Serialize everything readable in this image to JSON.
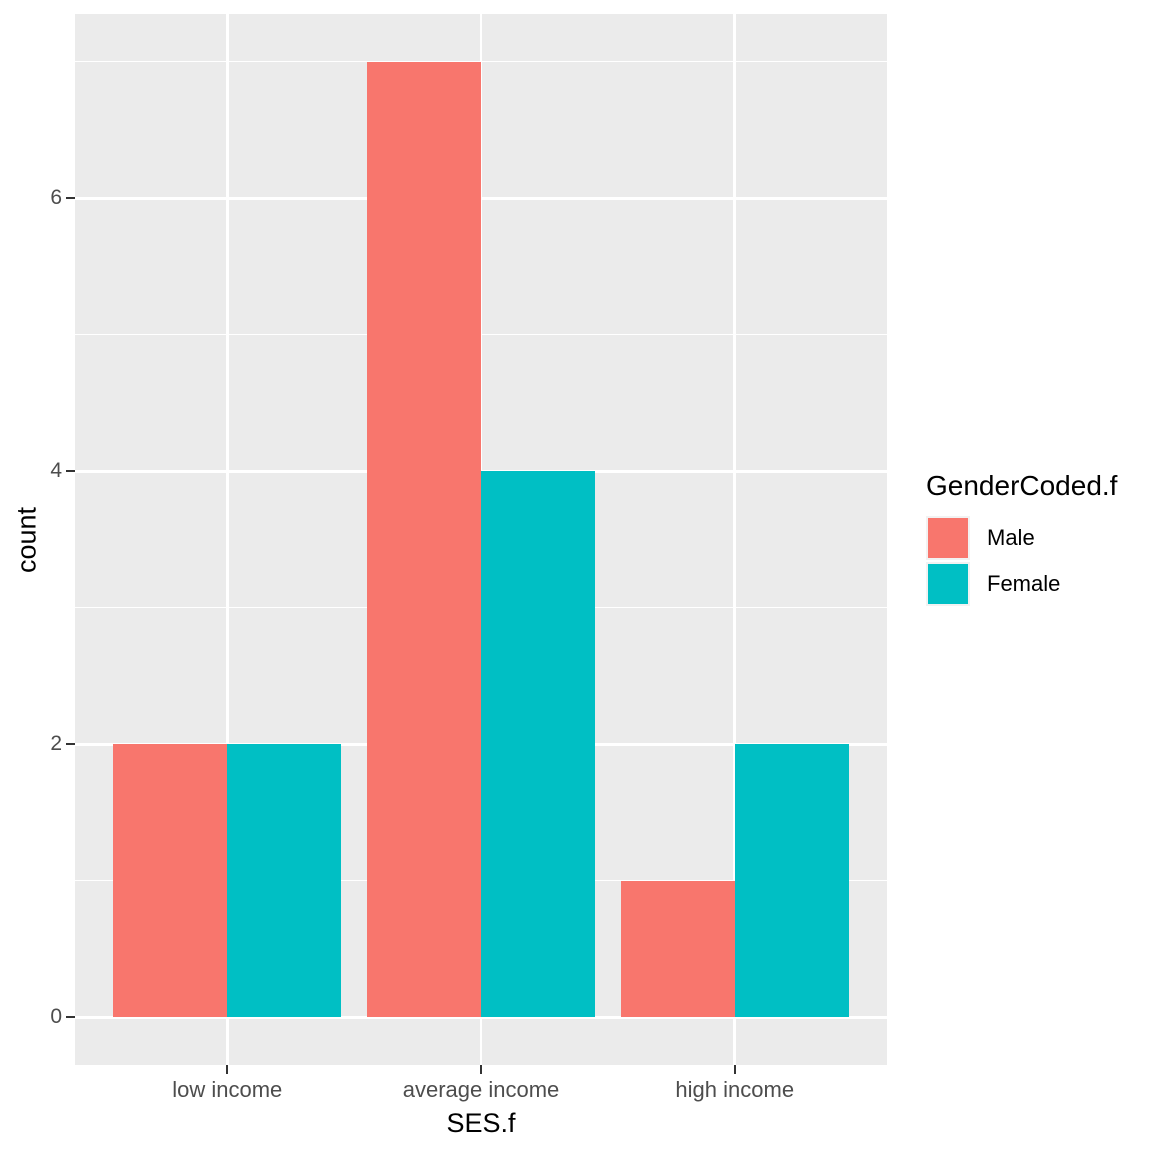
{
  "chart_data": {
    "type": "bar",
    "bar_layout": "dodge",
    "categories": [
      "low income",
      "average income",
      "high income"
    ],
    "series": [
      {
        "name": "Male",
        "color": "#F8766D",
        "values": [
          2,
          7,
          1
        ]
      },
      {
        "name": "Female",
        "color": "#00BFC4",
        "values": [
          2,
          4,
          2
        ]
      }
    ],
    "xlabel": "SES.f",
    "ylabel": "count",
    "ylim": [
      0,
      7
    ],
    "y_expansion": 0.05,
    "x_expansion": 0.6,
    "bar_half_width_units": 0.45,
    "y_major_breaks": [
      0,
      2,
      4,
      6
    ],
    "y_minor_breaks": [
      1,
      3,
      5,
      7
    ],
    "y_tick_labels": [
      "0",
      "2",
      "4",
      "6"
    ],
    "grid": true,
    "legend_position": "right"
  },
  "axes": {
    "x_title": "SES.f",
    "y_title": "count"
  },
  "legend": {
    "title": "GenderCoded.f",
    "items": [
      {
        "label": "Male",
        "color": "#F8766D"
      },
      {
        "label": "Female",
        "color": "#00BFC4"
      }
    ]
  },
  "colors": {
    "panel_bg": "#EBEBEB",
    "gridline": "#FFFFFF",
    "tick_mark": "#333333",
    "tick_label": "#4D4D4D",
    "text": "#000000",
    "background": "#FFFFFF"
  }
}
